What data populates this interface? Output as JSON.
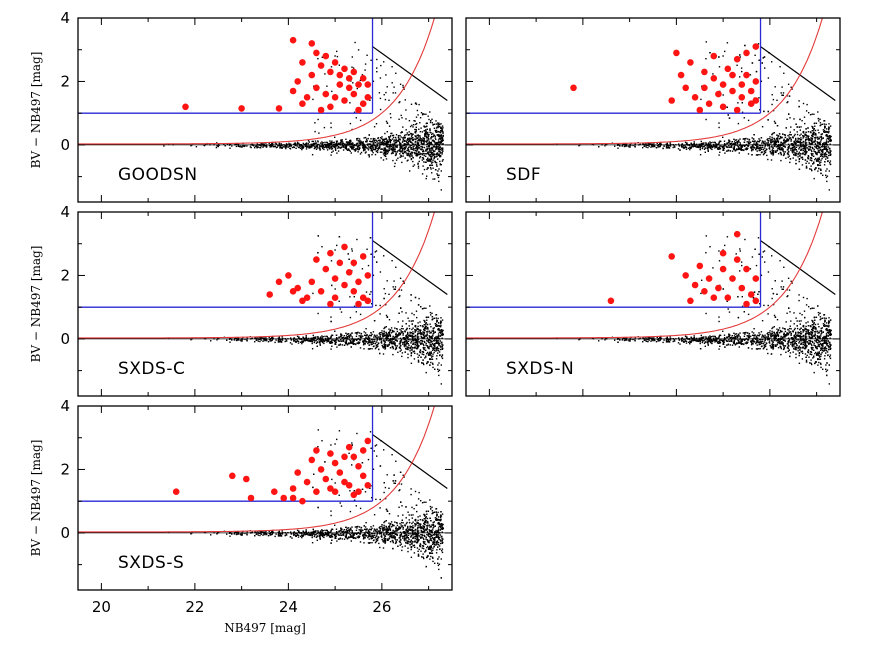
{
  "chart_data": [
    {
      "type": "scatter",
      "panel_label": "GOODSN",
      "xlim": [
        19.5,
        27.5
      ],
      "ylim": [
        -1.8,
        4
      ],
      "yticks": [
        0,
        2,
        4
      ],
      "xticks": [
        20,
        22,
        24,
        26
      ],
      "ylabel": "BV − NB497 [mag]",
      "color_cut": 1.0,
      "mag_limit": 25.8,
      "lae_points": [
        [
          21.8,
          1.2
        ],
        [
          23.0,
          1.15
        ],
        [
          23.8,
          1.15
        ],
        [
          24.1,
          3.3
        ],
        [
          24.5,
          3.2
        ],
        [
          24.3,
          2.6
        ],
        [
          24.7,
          2.5
        ],
        [
          24.9,
          2.3
        ],
        [
          25.1,
          2.2
        ],
        [
          25.3,
          2.1
        ],
        [
          25.5,
          1.9
        ],
        [
          24.2,
          2.0
        ],
        [
          24.6,
          1.8
        ],
        [
          24.8,
          1.6
        ],
        [
          25.0,
          1.5
        ],
        [
          25.2,
          1.4
        ],
        [
          25.4,
          1.6
        ],
        [
          25.6,
          1.3
        ],
        [
          24.4,
          1.5
        ],
        [
          24.9,
          1.2
        ],
        [
          25.3,
          1.8
        ],
        [
          25.7,
          1.9
        ],
        [
          24.6,
          2.9
        ],
        [
          24.8,
          2.8
        ],
        [
          25.0,
          2.6
        ],
        [
          25.2,
          2.4
        ],
        [
          25.4,
          2.3
        ],
        [
          25.6,
          2.1
        ],
        [
          24.1,
          1.7
        ],
        [
          24.3,
          1.3
        ],
        [
          24.7,
          1.1
        ],
        [
          25.5,
          1.1
        ],
        [
          25.1,
          1.9
        ],
        [
          24.5,
          2.2
        ],
        [
          25.7,
          1.5
        ]
      ]
    },
    {
      "type": "scatter",
      "panel_label": "SDF",
      "xlim": [
        19.5,
        27.5
      ],
      "ylim": [
        -1.8,
        4
      ],
      "yticks": [
        0,
        2,
        4
      ],
      "xticks": [
        20,
        22,
        24,
        26
      ],
      "color_cut": 1.0,
      "mag_limit": 25.8,
      "lae_points": [
        [
          21.8,
          1.8
        ],
        [
          23.9,
          1.4
        ],
        [
          24.0,
          2.9
        ],
        [
          24.3,
          2.6
        ],
        [
          24.6,
          2.3
        ],
        [
          24.8,
          2.1
        ],
        [
          25.0,
          1.9
        ],
        [
          25.2,
          1.7
        ],
        [
          25.4,
          1.5
        ],
        [
          25.6,
          1.3
        ],
        [
          24.2,
          1.8
        ],
        [
          24.4,
          1.5
        ],
        [
          24.7,
          1.3
        ],
        [
          24.9,
          1.6
        ],
        [
          25.1,
          2.4
        ],
        [
          25.3,
          2.7
        ],
        [
          25.5,
          2.9
        ],
        [
          25.7,
          3.1
        ],
        [
          25.5,
          2.2
        ],
        [
          25.7,
          2.0
        ],
        [
          24.5,
          1.1
        ],
        [
          25.0,
          1.2
        ],
        [
          25.6,
          1.7
        ],
        [
          25.3,
          1.1
        ],
        [
          24.1,
          2.2
        ],
        [
          25.7,
          1.4
        ],
        [
          24.8,
          2.8
        ],
        [
          25.2,
          2.2
        ],
        [
          25.4,
          1.9
        ],
        [
          24.6,
          1.8
        ]
      ]
    },
    {
      "type": "scatter",
      "panel_label": "SXDS-C",
      "xlim": [
        19.5,
        27.5
      ],
      "ylim": [
        -1.8,
        4
      ],
      "yticks": [
        0,
        2,
        4
      ],
      "xticks": [
        20,
        22,
        24,
        26
      ],
      "ylabel": "BV − NB497 [mag]",
      "color_cut": 1.0,
      "mag_limit": 25.8,
      "lae_points": [
        [
          23.6,
          1.4
        ],
        [
          23.8,
          1.8
        ],
        [
          24.0,
          2.0
        ],
        [
          24.2,
          1.6
        ],
        [
          24.4,
          1.3
        ],
        [
          24.6,
          2.5
        ],
        [
          24.8,
          2.2
        ],
        [
          25.0,
          1.9
        ],
        [
          25.2,
          1.7
        ],
        [
          25.4,
          1.5
        ],
        [
          25.6,
          1.3
        ],
        [
          24.5,
          1.8
        ],
        [
          24.7,
          1.5
        ],
        [
          24.9,
          2.7
        ],
        [
          25.1,
          2.4
        ],
        [
          25.3,
          2.1
        ],
        [
          25.5,
          1.8
        ],
        [
          25.7,
          2.0
        ],
        [
          25.7,
          1.2
        ],
        [
          24.3,
          1.2
        ],
        [
          25.0,
          1.3
        ],
        [
          25.4,
          2.4
        ],
        [
          25.6,
          2.6
        ],
        [
          24.1,
          1.5
        ],
        [
          25.2,
          2.9
        ],
        [
          24.9,
          1.1
        ],
        [
          25.5,
          1.1
        ]
      ]
    },
    {
      "type": "scatter",
      "panel_label": "SXDS-N",
      "xlim": [
        19.5,
        27.5
      ],
      "ylim": [
        -1.8,
        4
      ],
      "yticks": [
        0,
        2,
        4
      ],
      "xticks": [
        20,
        22,
        24,
        26
      ],
      "color_cut": 1.0,
      "mag_limit": 25.8,
      "lae_points": [
        [
          22.6,
          1.2
        ],
        [
          23.9,
          2.6
        ],
        [
          24.2,
          2.0
        ],
        [
          24.4,
          1.7
        ],
        [
          24.6,
          1.5
        ],
        [
          24.8,
          1.3
        ],
        [
          25.0,
          2.2
        ],
        [
          25.2,
          1.9
        ],
        [
          25.4,
          1.6
        ],
        [
          25.6,
          1.4
        ],
        [
          24.5,
          2.3
        ],
        [
          24.7,
          1.9
        ],
        [
          24.9,
          1.6
        ],
        [
          25.1,
          1.3
        ],
        [
          25.3,
          2.5
        ],
        [
          25.5,
          2.2
        ],
        [
          25.7,
          1.9
        ],
        [
          25.3,
          3.3
        ],
        [
          24.3,
          1.2
        ],
        [
          25.7,
          1.2
        ],
        [
          25.0,
          2.7
        ],
        [
          25.5,
          1.1
        ]
      ]
    },
    {
      "type": "scatter",
      "panel_label": "SXDS-S",
      "xlim": [
        19.5,
        27.5
      ],
      "ylim": [
        -1.8,
        4
      ],
      "yticks": [
        0,
        2,
        4
      ],
      "xticks": [
        20,
        22,
        24,
        26
      ],
      "xlabel": "NB497 [mag]",
      "ylabel": "BV − NB497 [mag]",
      "color_cut": 1.0,
      "mag_limit": 25.8,
      "lae_points": [
        [
          21.6,
          1.3
        ],
        [
          22.8,
          1.8
        ],
        [
          23.1,
          1.7
        ],
        [
          23.2,
          1.1
        ],
        [
          23.7,
          1.3
        ],
        [
          23.9,
          1.1
        ],
        [
          24.1,
          1.4
        ],
        [
          24.2,
          1.9
        ],
        [
          24.4,
          1.6
        ],
        [
          24.5,
          2.3
        ],
        [
          24.6,
          1.3
        ],
        [
          24.7,
          2.0
        ],
        [
          24.8,
          1.7
        ],
        [
          24.9,
          2.5
        ],
        [
          25.0,
          2.2
        ],
        [
          25.1,
          1.9
        ],
        [
          25.2,
          1.6
        ],
        [
          25.3,
          2.7
        ],
        [
          25.4,
          2.4
        ],
        [
          25.5,
          2.1
        ],
        [
          25.6,
          1.8
        ],
        [
          25.7,
          1.5
        ],
        [
          25.7,
          2.9
        ],
        [
          24.3,
          1.0
        ],
        [
          25.0,
          1.3
        ],
        [
          25.4,
          1.2
        ],
        [
          24.6,
          2.6
        ],
        [
          25.2,
          2.4
        ],
        [
          24.9,
          1.4
        ],
        [
          25.6,
          2.6
        ],
        [
          25.3,
          1.5
        ],
        [
          24.1,
          1.1
        ],
        [
          25.5,
          1.3
        ]
      ]
    }
  ],
  "colors": {
    "lae": "#ff1414",
    "cut": "#2a2ad6",
    "curve": "#e33b3b",
    "field": "#000000"
  }
}
